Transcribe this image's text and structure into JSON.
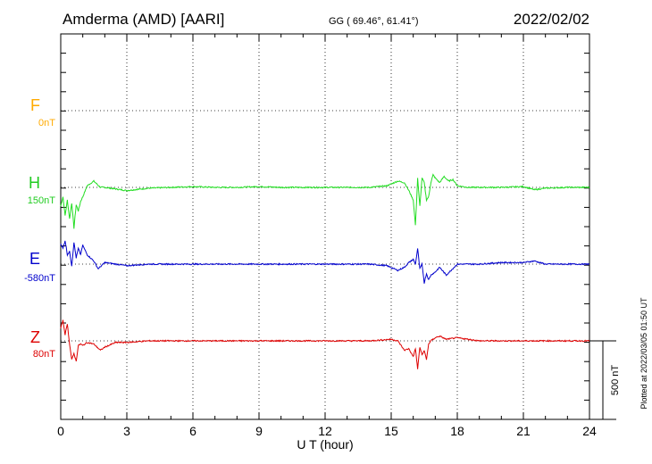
{
  "header": {
    "station": "Amderma (AMD)  [AARI]",
    "coords": "GG ( 69.46°,  61.41°)",
    "date": "2022/02/02"
  },
  "side_note": "Plotted at 2022/03/05 01:50 UT",
  "scale_label": "500 nT",
  "colors": {
    "F": "#ffaa00",
    "H": "#22dd22",
    "E": "#0000cc",
    "Z": "#dd0000",
    "frame": "#000000"
  },
  "chart_data": {
    "type": "line",
    "xlabel": "U T (hour)",
    "xlim": [
      0,
      24
    ],
    "x_ticks": [
      "0",
      "3",
      "6",
      "9",
      "12",
      "15",
      "18",
      "21",
      "24"
    ],
    "grid": true,
    "scale_bar_nT": 500,
    "series": [
      {
        "name": "F",
        "offset_label": "0nT",
        "values": []
      },
      {
        "name": "H",
        "offset_label": "150nT",
        "x": [
          0,
          0.1,
          0.2,
          0.3,
          0.4,
          0.5,
          0.6,
          0.7,
          0.8,
          0.9,
          1.0,
          1.2,
          1.5,
          1.8,
          2.0,
          2.5,
          3.0,
          4.0,
          5.0,
          6.0,
          7.0,
          8.0,
          9.0,
          10.0,
          11.0,
          12.0,
          13.0,
          14.0,
          14.8,
          15.3,
          15.6,
          15.8,
          16.0,
          16.1,
          16.2,
          16.3,
          16.4,
          16.5,
          16.6,
          16.7,
          16.8,
          16.9,
          17.0,
          17.2,
          17.4,
          17.6,
          17.8,
          18.0,
          18.5,
          19.0,
          20.0,
          21.0,
          21.5,
          22.0,
          23.0,
          24.0
        ],
        "y": [
          -120,
          -60,
          -180,
          -80,
          -200,
          -100,
          -260,
          -110,
          -150,
          -90,
          -60,
          10,
          40,
          0,
          0,
          -10,
          -20,
          -5,
          0,
          5,
          0,
          0,
          5,
          0,
          0,
          0,
          0,
          0,
          10,
          40,
          30,
          -20,
          -80,
          -240,
          60,
          -120,
          60,
          30,
          -80,
          -60,
          30,
          80,
          60,
          30,
          70,
          40,
          50,
          10,
          0,
          0,
          0,
          5,
          -15,
          -5,
          0,
          0
        ]
      },
      {
        "name": "E",
        "offset_label": "-580nT",
        "x": [
          0,
          0.1,
          0.2,
          0.3,
          0.4,
          0.5,
          0.6,
          0.7,
          0.8,
          0.9,
          1.0,
          1.2,
          1.5,
          1.7,
          2.0,
          2.5,
          3.0,
          4.0,
          6.0,
          8.0,
          10.0,
          12.0,
          14.0,
          14.8,
          15.3,
          15.6,
          15.8,
          16.0,
          16.1,
          16.2,
          16.3,
          16.4,
          16.5,
          16.6,
          16.7,
          16.8,
          17.0,
          17.2,
          17.5,
          18.0,
          19.0,
          20.0,
          21.0,
          21.5,
          22.0,
          23.0,
          24.0
        ],
        "y": [
          130,
          100,
          150,
          60,
          80,
          -10,
          140,
          40,
          100,
          60,
          120,
          60,
          20,
          -30,
          10,
          0,
          -10,
          0,
          0,
          0,
          0,
          0,
          0,
          -10,
          -40,
          -20,
          10,
          30,
          0,
          100,
          -30,
          0,
          -120,
          -60,
          -100,
          -70,
          -50,
          -20,
          -70,
          0,
          0,
          10,
          10,
          20,
          0,
          0,
          0
        ]
      },
      {
        "name": "Z",
        "offset_label": "80nT",
        "x": [
          0,
          0.1,
          0.2,
          0.3,
          0.4,
          0.5,
          0.6,
          0.7,
          0.8,
          0.9,
          1.0,
          1.2,
          1.5,
          1.8,
          2.0,
          2.5,
          3.0,
          4.0,
          6.0,
          8.0,
          10.0,
          12.0,
          14.0,
          15.0,
          15.3,
          15.6,
          15.8,
          16.0,
          16.1,
          16.2,
          16.3,
          16.4,
          16.5,
          16.6,
          16.7,
          16.8,
          17.0,
          17.2,
          17.5,
          18.0,
          18.5,
          19.0,
          20.0,
          21.0,
          22.0,
          23.0,
          24.0
        ],
        "y": [
          80,
          130,
          40,
          110,
          -20,
          -120,
          -80,
          -130,
          -30,
          -20,
          -30,
          -10,
          -20,
          -60,
          -40,
          -10,
          -10,
          0,
          0,
          0,
          0,
          0,
          0,
          10,
          0,
          -60,
          -50,
          -100,
          -50,
          -180,
          -40,
          -90,
          -60,
          -120,
          -20,
          0,
          20,
          30,
          10,
          20,
          10,
          0,
          0,
          0,
          0,
          0,
          0
        ]
      }
    ]
  }
}
